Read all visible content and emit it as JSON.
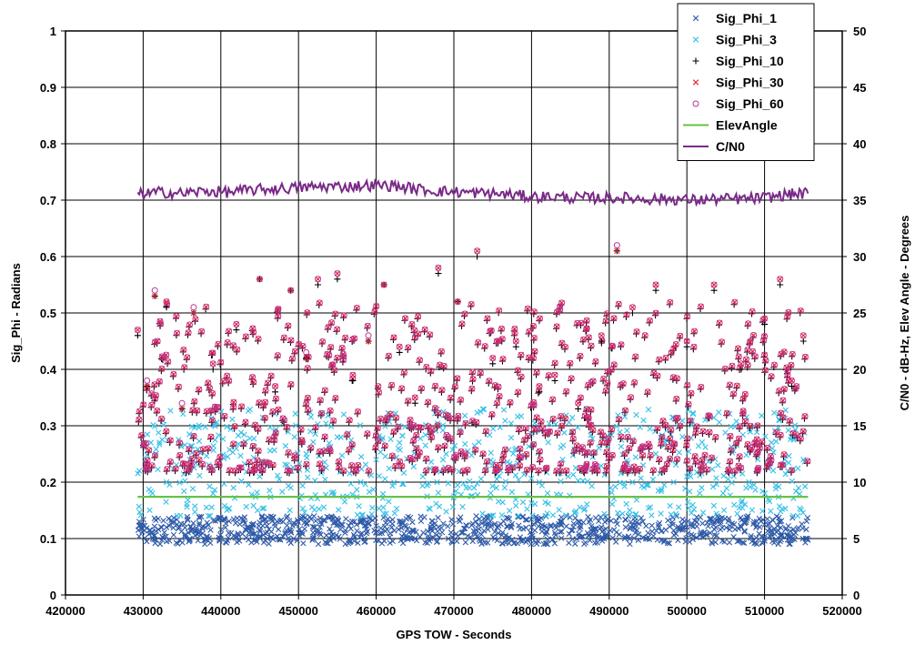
{
  "chart_data": {
    "type": "scatter",
    "title": "",
    "xlabel": "GPS TOW - Seconds",
    "ylabel_left": "Sig_Phi - Radians",
    "ylabel_right": "C/N0 - dB-Hz, Elev Angle - Degrees",
    "xlim": [
      420000,
      520000
    ],
    "ylim_left": [
      0,
      1
    ],
    "ylim_right": [
      0,
      50
    ],
    "x_ticks": [
      "420000",
      "430000",
      "440000",
      "450000",
      "460000",
      "470000",
      "480000",
      "490000",
      "500000",
      "510000",
      "520000"
    ],
    "y_left_ticks": [
      "0",
      "0.1",
      "0.2",
      "0.3",
      "0.4",
      "0.5",
      "0.6",
      "0.7",
      "0.8",
      "0.9",
      "1"
    ],
    "y_right_ticks": [
      "0",
      "5",
      "10",
      "15",
      "20",
      "25",
      "30",
      "35",
      "40",
      "45",
      "50"
    ],
    "grid": "vertical-and-horizontal",
    "legend_position": "top-right",
    "x_range_data": [
      429300,
      515600
    ],
    "series": [
      {
        "name": "Sig_Phi_1",
        "marker": "x",
        "color": "#2e5aa8",
        "axis": "left",
        "typical_range": [
          0.09,
          0.14
        ],
        "points": [
          [
            429500,
            0.13
          ],
          [
            431000,
            0.11
          ],
          [
            433000,
            0.12
          ],
          [
            436000,
            0.1
          ],
          [
            438000,
            0.12
          ],
          [
            441000,
            0.11
          ],
          [
            444000,
            0.12
          ],
          [
            446000,
            0.1
          ],
          [
            448000,
            0.13
          ],
          [
            450000,
            0.11
          ],
          [
            452000,
            0.12
          ],
          [
            454000,
            0.1
          ],
          [
            456000,
            0.11
          ],
          [
            458000,
            0.13
          ],
          [
            460000,
            0.11
          ],
          [
            462000,
            0.12
          ],
          [
            465000,
            0.1
          ],
          [
            468000,
            0.12
          ],
          [
            471000,
            0.11
          ],
          [
            474000,
            0.13
          ],
          [
            477000,
            0.1
          ],
          [
            480000,
            0.12
          ],
          [
            483000,
            0.11
          ],
          [
            486000,
            0.13
          ],
          [
            489000,
            0.12
          ],
          [
            492000,
            0.1
          ],
          [
            495000,
            0.11
          ],
          [
            500000,
            0.12
          ],
          [
            503000,
            0.11
          ],
          [
            507000,
            0.12
          ],
          [
            510000,
            0.1
          ],
          [
            512000,
            0.13
          ],
          [
            514000,
            0.11
          ],
          [
            515500,
            0.1
          ]
        ]
      },
      {
        "name": "Sig_Phi_3",
        "marker": "x",
        "color": "#33c0e8",
        "axis": "left",
        "typical_range": [
          0.14,
          0.33
        ],
        "points": [
          [
            429500,
            0.22
          ],
          [
            431000,
            0.27
          ],
          [
            433000,
            0.2
          ],
          [
            436000,
            0.24
          ],
          [
            439000,
            0.18
          ],
          [
            442000,
            0.26
          ],
          [
            445000,
            0.21
          ],
          [
            447000,
            0.29
          ],
          [
            449000,
            0.19
          ],
          [
            451000,
            0.25
          ],
          [
            453000,
            0.22
          ],
          [
            455000,
            0.28
          ],
          [
            458000,
            0.2
          ],
          [
            460000,
            0.24
          ],
          [
            463000,
            0.27
          ],
          [
            466000,
            0.21
          ],
          [
            469000,
            0.25
          ],
          [
            472000,
            0.19
          ],
          [
            475000,
            0.23
          ],
          [
            478000,
            0.26
          ],
          [
            481000,
            0.2
          ],
          [
            484000,
            0.24
          ],
          [
            487000,
            0.22
          ],
          [
            490000,
            0.28
          ],
          [
            493000,
            0.2
          ],
          [
            496000,
            0.25
          ],
          [
            500000,
            0.21
          ],
          [
            504000,
            0.23
          ],
          [
            508000,
            0.2
          ],
          [
            511000,
            0.26
          ],
          [
            513000,
            0.22
          ],
          [
            515000,
            0.24
          ]
        ]
      },
      {
        "name": "Sig_Phi_10",
        "marker": "+",
        "color": "#000000",
        "axis": "left",
        "typical_range": [
          0.19,
          0.61
        ],
        "points": [
          [
            429300,
            0.46
          ],
          [
            430500,
            0.37
          ],
          [
            431500,
            0.53
          ],
          [
            433000,
            0.51
          ],
          [
            435000,
            0.33
          ],
          [
            436500,
            0.5
          ],
          [
            439000,
            0.4
          ],
          [
            442000,
            0.47
          ],
          [
            445000,
            0.56
          ],
          [
            447000,
            0.36
          ],
          [
            449000,
            0.54
          ],
          [
            451000,
            0.42
          ],
          [
            452500,
            0.55
          ],
          [
            455000,
            0.56
          ],
          [
            457000,
            0.38
          ],
          [
            459000,
            0.45
          ],
          [
            461000,
            0.55
          ],
          [
            463000,
            0.43
          ],
          [
            465000,
            0.34
          ],
          [
            468000,
            0.57
          ],
          [
            470500,
            0.52
          ],
          [
            473000,
            0.6
          ],
          [
            475000,
            0.41
          ],
          [
            478000,
            0.44
          ],
          [
            481000,
            0.36
          ],
          [
            483000,
            0.38
          ],
          [
            486000,
            0.33
          ],
          [
            489000,
            0.45
          ],
          [
            491000,
            0.61
          ],
          [
            493000,
            0.5
          ],
          [
            496000,
            0.54
          ],
          [
            500000,
            0.44
          ],
          [
            503500,
            0.54
          ],
          [
            507000,
            0.4
          ],
          [
            510000,
            0.48
          ],
          [
            512000,
            0.55
          ],
          [
            513500,
            0.37
          ],
          [
            515000,
            0.45
          ]
        ]
      },
      {
        "name": "Sig_Phi_30",
        "marker": "x",
        "color": "#e8202a",
        "axis": "left",
        "typical_range": [
          0.19,
          0.61
        ],
        "points": [
          [
            429300,
            0.47
          ],
          [
            430500,
            0.37
          ],
          [
            431500,
            0.53
          ],
          [
            433000,
            0.52
          ],
          [
            435000,
            0.33
          ],
          [
            436500,
            0.5
          ],
          [
            439000,
            0.41
          ],
          [
            442000,
            0.48
          ],
          [
            445000,
            0.56
          ],
          [
            447000,
            0.37
          ],
          [
            449000,
            0.54
          ],
          [
            451000,
            0.42
          ],
          [
            452500,
            0.56
          ],
          [
            455000,
            0.57
          ],
          [
            457000,
            0.39
          ],
          [
            459000,
            0.45
          ],
          [
            461000,
            0.55
          ],
          [
            463000,
            0.44
          ],
          [
            465000,
            0.35
          ],
          [
            468000,
            0.58
          ],
          [
            470500,
            0.52
          ],
          [
            473000,
            0.61
          ],
          [
            475000,
            0.42
          ],
          [
            478000,
            0.45
          ],
          [
            481000,
            0.37
          ],
          [
            483000,
            0.39
          ],
          [
            486000,
            0.34
          ],
          [
            489000,
            0.46
          ],
          [
            491000,
            0.61
          ],
          [
            493000,
            0.51
          ],
          [
            496000,
            0.55
          ],
          [
            500000,
            0.45
          ],
          [
            503500,
            0.55
          ],
          [
            507000,
            0.41
          ],
          [
            510000,
            0.49
          ],
          [
            512000,
            0.56
          ],
          [
            513500,
            0.38
          ],
          [
            515000,
            0.46
          ]
        ]
      },
      {
        "name": "Sig_Phi_60",
        "marker": "o",
        "color": "#b8359a",
        "axis": "left",
        "typical_range": [
          0.19,
          0.62
        ],
        "points": [
          [
            429300,
            0.47
          ],
          [
            430500,
            0.38
          ],
          [
            431500,
            0.54
          ],
          [
            433000,
            0.52
          ],
          [
            435000,
            0.34
          ],
          [
            436500,
            0.51
          ],
          [
            439000,
            0.41
          ],
          [
            442000,
            0.48
          ],
          [
            445000,
            0.56
          ],
          [
            447000,
            0.37
          ],
          [
            449000,
            0.54
          ],
          [
            451000,
            0.43
          ],
          [
            452500,
            0.56
          ],
          [
            455000,
            0.57
          ],
          [
            457000,
            0.39
          ],
          [
            459000,
            0.46
          ],
          [
            461000,
            0.55
          ],
          [
            463000,
            0.44
          ],
          [
            465000,
            0.35
          ],
          [
            468000,
            0.58
          ],
          [
            470500,
            0.52
          ],
          [
            473000,
            0.61
          ],
          [
            475000,
            0.42
          ],
          [
            478000,
            0.45
          ],
          [
            481000,
            0.37
          ],
          [
            483000,
            0.39
          ],
          [
            486000,
            0.34
          ],
          [
            489000,
            0.46
          ],
          [
            491000,
            0.62
          ],
          [
            493000,
            0.51
          ],
          [
            496000,
            0.55
          ],
          [
            500000,
            0.45
          ],
          [
            503500,
            0.55
          ],
          [
            507000,
            0.41
          ],
          [
            510000,
            0.49
          ],
          [
            512000,
            0.56
          ],
          [
            513500,
            0.38
          ],
          [
            515000,
            0.46
          ]
        ]
      },
      {
        "name": "ElevAngle",
        "marker": "line",
        "color": "#66c24a",
        "axis": "right",
        "points": [
          [
            429300,
            8.7
          ],
          [
            515600,
            8.7
          ]
        ]
      },
      {
        "name": "C/N0",
        "marker": "line",
        "color": "#7a2a88",
        "axis": "right",
        "points": [
          [
            429300,
            35.5
          ],
          [
            432000,
            35.7
          ],
          [
            435000,
            35.6
          ],
          [
            438000,
            35.8
          ],
          [
            441000,
            35.7
          ],
          [
            444000,
            35.9
          ],
          [
            447000,
            36.0
          ],
          [
            450000,
            36.1
          ],
          [
            453000,
            36.2
          ],
          [
            456000,
            36.2
          ],
          [
            459000,
            36.3
          ],
          [
            462000,
            36.3
          ],
          [
            465000,
            36.0
          ],
          [
            468000,
            35.8
          ],
          [
            471000,
            35.7
          ],
          [
            474000,
            35.6
          ],
          [
            477000,
            35.5
          ],
          [
            480000,
            35.3
          ],
          [
            483000,
            35.3
          ],
          [
            486000,
            35.2
          ],
          [
            489000,
            35.2
          ],
          [
            492000,
            35.2
          ],
          [
            495000,
            35.1
          ],
          [
            498000,
            35.1
          ],
          [
            501000,
            35.0
          ],
          [
            504000,
            35.1
          ],
          [
            507000,
            35.1
          ],
          [
            510000,
            35.2
          ],
          [
            513000,
            35.5
          ],
          [
            515600,
            35.6
          ]
        ]
      }
    ]
  }
}
